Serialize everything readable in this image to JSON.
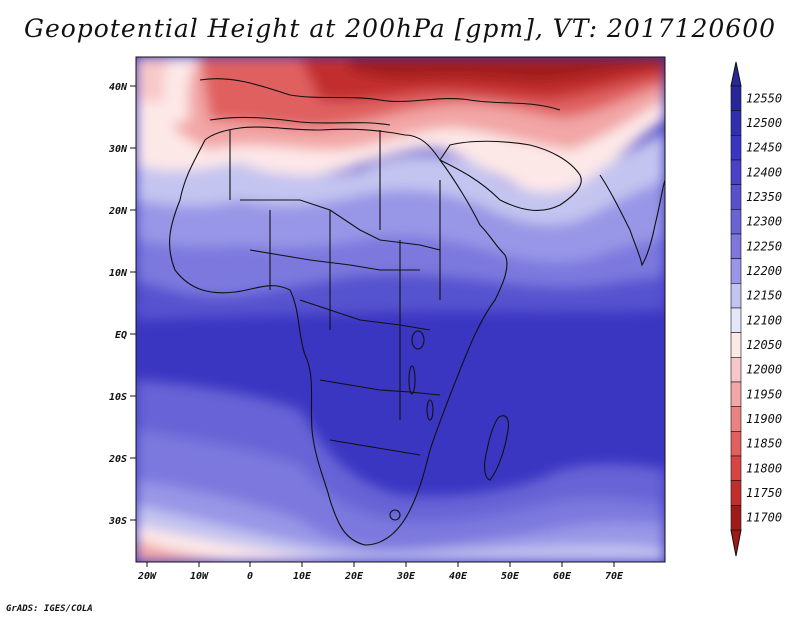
{
  "title": "Geopotential Height at 200hPa [gpm], VT: 2017120600",
  "credit": "GrADS: IGES/COLA",
  "map": {
    "lat_labels": [
      "40N",
      "30N",
      "20N",
      "10N",
      "EQ",
      "10S",
      "20S",
      "30S"
    ],
    "lon_labels": [
      "20W",
      "10W",
      "0",
      "10E",
      "20E",
      "30E",
      "40E",
      "50E",
      "60E",
      "70E"
    ],
    "lat_range": [
      -36,
      45
    ],
    "lon_range": [
      -22,
      80
    ],
    "field_description_colors": {
      "low": "#a01a1a",
      "mid": "#ffffff",
      "high": "#3a35c0"
    }
  },
  "colorbar": {
    "levels": [
      "12550",
      "12500",
      "12450",
      "12400",
      "12350",
      "12300",
      "12250",
      "12200",
      "12150",
      "12100",
      "12050",
      "12000",
      "11950",
      "11900",
      "11850",
      "11800",
      "11750",
      "11700"
    ],
    "colors": [
      "#27279a",
      "#2f2fb0",
      "#3b36c2",
      "#4742c8",
      "#5652cf",
      "#6864d6",
      "#7c78de",
      "#9896e6",
      "#c4c4f0",
      "#e6e6fa",
      "#fde8e8",
      "#f8c8c8",
      "#f2a6a6",
      "#ea8282",
      "#e06060",
      "#d64444",
      "#c22e2e",
      "#a01a1a"
    ]
  }
}
